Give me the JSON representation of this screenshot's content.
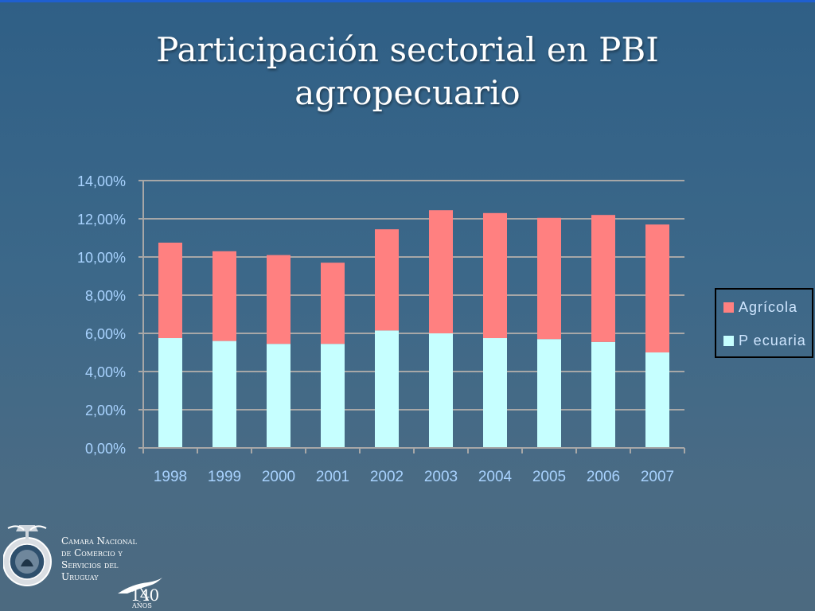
{
  "title_lines": [
    "Participación sectorial en PBI",
    "agropecuario"
  ],
  "chart_data": {
    "type": "bar",
    "stacked": true,
    "title": "Participación sectorial en PBI agropecuario",
    "categories": [
      "1998",
      "1999",
      "2000",
      "2001",
      "2002",
      "2003",
      "2004",
      "2005",
      "2006",
      "2007"
    ],
    "series": [
      {
        "name": "Pecuaria",
        "color": "#c6ffff",
        "values": [
          5.75,
          5.6,
          5.45,
          5.45,
          6.15,
          6.0,
          5.75,
          5.7,
          5.55,
          5.0
        ]
      },
      {
        "name": "Agrícola",
        "color": "#ff8080",
        "values": [
          5.0,
          4.7,
          4.65,
          4.25,
          5.3,
          6.45,
          6.55,
          6.35,
          6.65,
          6.7
        ]
      }
    ],
    "ylim": [
      0,
      14
    ],
    "yticks": [
      "0,00%",
      "2,00%",
      "4,00%",
      "6,00%",
      "8,00%",
      "10,00%",
      "12,00%",
      "14,00%"
    ],
    "grid": true,
    "legend_position": "right",
    "xlabel": "",
    "ylabel": ""
  },
  "legend": {
    "items": [
      {
        "label": "Agrícola"
      },
      {
        "label": "P ecuaria"
      }
    ]
  },
  "organization": {
    "lines": [
      "Camara Nacional",
      "de Comercio y",
      "Servicios del",
      "Uruguay"
    ]
  },
  "anniversary": {
    "number": "140",
    "word": "AÑOS"
  }
}
